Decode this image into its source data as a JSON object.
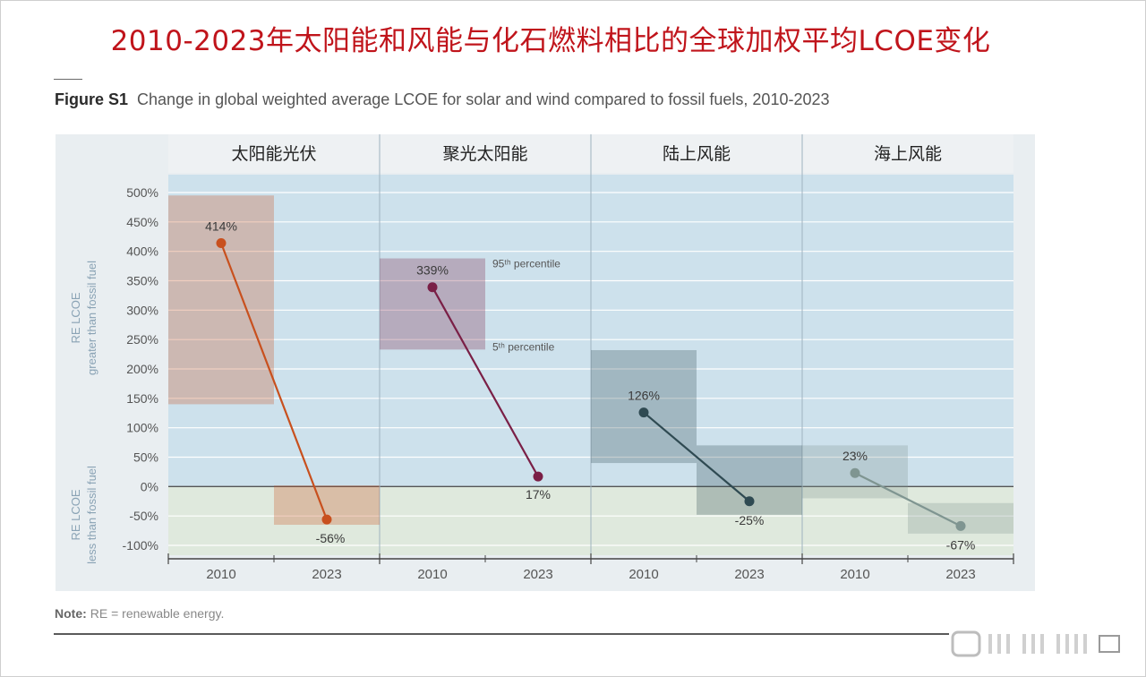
{
  "page": {
    "title": "2010-2023年太阳能和风能与化石燃料相比的全球加权平均LCOE变化",
    "figure_label": "Figure S1",
    "figure_caption": "Change in global weighted average LCOE for solar and wind compared to fossil fuels, 2010-2023",
    "note_label": "Note:",
    "note_text": "RE = renewable energy."
  },
  "colors": {
    "title": "#c0141b",
    "band_above": "#cde1ec",
    "band_below": "#dfe9dd",
    "header_bg": "#eef1f3",
    "solar_pv": "#c8501e",
    "csp": "#7a1f46",
    "onshore_wind": "#2f4a52",
    "offshore_wind": "#7f9591"
  },
  "chart_data": {
    "type": "line",
    "title": "",
    "ylabel_upper": [
      "RE LCOE",
      "greater than fossil fuel"
    ],
    "ylabel_lower": [
      "RE LCOE",
      "less than fossil fuel"
    ],
    "ylim": [
      -100,
      500
    ],
    "yticks": [
      500,
      450,
      400,
      350,
      300,
      250,
      200,
      150,
      100,
      50,
      0,
      -50,
      -100
    ],
    "ytick_labels": [
      "500%",
      "450%",
      "400%",
      "350%",
      "300%",
      "250%",
      "200%",
      "150%",
      "100%",
      "50%",
      "0%",
      "-50%",
      "-100%"
    ],
    "grid": true,
    "panels": [
      {
        "name": "太阳能光伏",
        "color_key": "solar_pv",
        "x": [
          "2010",
          "2023"
        ],
        "values": [
          414,
          -56
        ],
        "labels": [
          "414%",
          "-56%"
        ],
        "ranges": [
          [
            140,
            495
          ],
          [
            -65,
            2
          ]
        ]
      },
      {
        "name": "聚光太阳能",
        "color_key": "csp",
        "x": [
          "2010",
          "2023"
        ],
        "values": [
          339,
          17
        ],
        "labels": [
          "339%",
          "17%"
        ],
        "ranges": [
          [
            233,
            388
          ],
          null
        ],
        "annotations": [
          "95ᵗʰ percentile",
          "5ᵗʰ percentile"
        ]
      },
      {
        "name": "陆上风能",
        "color_key": "onshore_wind",
        "x": [
          "2010",
          "2023"
        ],
        "values": [
          126,
          -25
        ],
        "labels": [
          "126%",
          "-25%"
        ],
        "ranges": [
          [
            40,
            232
          ],
          [
            -48,
            70
          ]
        ]
      },
      {
        "name": "海上风能",
        "color_key": "offshore_wind",
        "x": [
          "2010",
          "2023"
        ],
        "values": [
          23,
          -67
        ],
        "labels": [
          "23%",
          "-67%"
        ],
        "ranges": [
          [
            -20,
            70
          ],
          [
            -80,
            -28
          ]
        ]
      }
    ]
  }
}
